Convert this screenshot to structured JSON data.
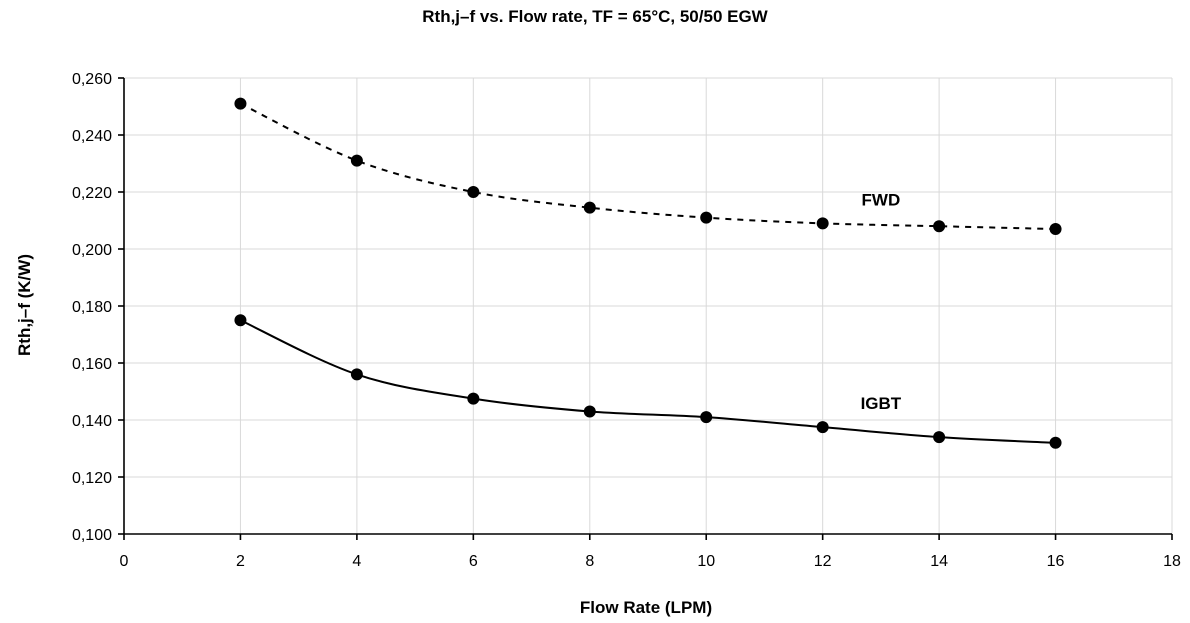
{
  "chart_data": {
    "type": "line",
    "title": "Rth,j–f vs. Flow rate, TF = 65°C, 50/50 EGW",
    "xlabel": "Flow Rate (LPM)",
    "ylabel": "Rth,j–f (K/W)",
    "xlim": [
      0,
      18
    ],
    "ylim": [
      0.1,
      0.26
    ],
    "x_ticks": [
      0,
      2,
      4,
      6,
      8,
      10,
      12,
      14,
      16,
      18
    ],
    "x_tick_labels": [
      "0",
      "2",
      "4",
      "6",
      "8",
      "10",
      "12",
      "14",
      "16",
      "18"
    ],
    "y_ticks": [
      0.1,
      0.12,
      0.14,
      0.16,
      0.18,
      0.2,
      0.22,
      0.24,
      0.26
    ],
    "y_tick_labels": [
      "0,100",
      "0,120",
      "0,140",
      "0,160",
      "0,180",
      "0,200",
      "0,220",
      "0,240",
      "0,260"
    ],
    "grid": true,
    "series": [
      {
        "name": "FWD",
        "line_style": "dashed",
        "color": "#000000",
        "x": [
          2,
          4,
          6,
          8,
          10,
          12,
          14,
          16
        ],
        "y": [
          0.251,
          0.231,
          0.22,
          0.2145,
          0.211,
          0.209,
          0.208,
          0.207
        ]
      },
      {
        "name": "IGBT",
        "line_style": "solid",
        "color": "#000000",
        "x": [
          2,
          4,
          6,
          8,
          10,
          12,
          14,
          16
        ],
        "y": [
          0.175,
          0.156,
          0.1475,
          0.143,
          0.141,
          0.1375,
          0.134,
          0.132
        ]
      }
    ]
  }
}
